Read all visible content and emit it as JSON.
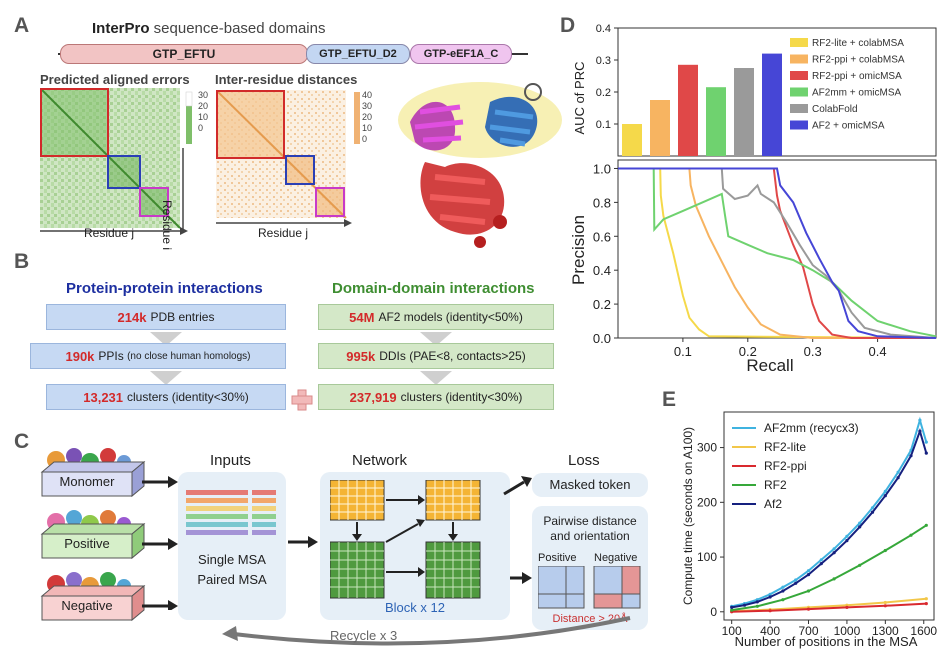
{
  "panels": {
    "a": "A",
    "b": "B",
    "c": "C",
    "d": "D",
    "e": "E"
  },
  "panel_a": {
    "title_bold": "InterPro",
    "title_rest": " sequence-based domains",
    "domains": [
      "GTP_EFTU",
      "GTP_EFTU_D2",
      "GTP-eEF1A_C"
    ],
    "pae_title": "Predicted aligned errors",
    "pae_scale": [
      "30",
      "20",
      "10",
      "0"
    ],
    "dist_title": "Inter-residue distances",
    "dist_scale": [
      "40",
      "30",
      "20",
      "10",
      "0"
    ],
    "residue_i": "Residue i",
    "residue_j": "Residue j"
  },
  "panel_b": {
    "ppi_title": "Protein-protein interactions",
    "ddi_title": "Domain-domain interactions",
    "ppi_rows": [
      {
        "hl": "214k",
        "text": "PDB entries",
        "small": ""
      },
      {
        "hl": "190k",
        "text": "PPIs",
        "small": "(no close human homologs)"
      },
      {
        "hl": "13,231",
        "text": "clusters (identity<30%)",
        "small": ""
      }
    ],
    "ddi_rows": [
      {
        "hl": "54M",
        "text": "AF2 models (identity<50%)"
      },
      {
        "hl": "995k",
        "text": "DDIs (PAE<8, contacts>25)"
      },
      {
        "hl": "237,919",
        "text": "clusters (identity<30%)"
      }
    ]
  },
  "panel_c": {
    "categories": [
      "Monomer",
      "Positive",
      "Negative"
    ],
    "inputs_title": "Inputs",
    "inputs_lines": [
      "Single MSA",
      "Paired MSA"
    ],
    "network_title": "Network",
    "block_label": "Block x 12",
    "loss_title": "Loss",
    "masked_token": "Masked token",
    "pairwise_lines": [
      "Pairwise distance",
      "and orientation"
    ],
    "positive": "Positive",
    "negative": "Negative",
    "distance_note": "Distance > 20Å",
    "recycle": "Recycle x 3"
  },
  "colors": {
    "rf2lite": "#f5d94a",
    "rf2ppi_colab": "#f7b461",
    "rf2ppi_omic": "#e04848",
    "af2mm_omic": "#6fd26f",
    "colabfold": "#9a9a9a",
    "af2_omic": "#4646d6",
    "e_af2mm": "#3fb3e0",
    "e_rf2lite": "#f2c74a",
    "e_rf2ppi": "#d9292e",
    "e_rf2": "#36a83a",
    "e_af2": "#15207f"
  },
  "chart_data": [
    {
      "type": "bar",
      "title": "",
      "ylabel": "AUC of PRC",
      "ylim": [
        0,
        0.4
      ],
      "yticks": [
        "0.1",
        "0.2",
        "0.3",
        "0.4"
      ],
      "categories": [
        "RF2-lite + colabMSA",
        "RF2-ppi + colabMSA",
        "RF2-ppi + omicMSA",
        "AF2mm + omicMSA",
        "ColabFold",
        "AF2 + omicMSA"
      ],
      "values": [
        0.1,
        0.175,
        0.285,
        0.215,
        0.275,
        0.32
      ]
    },
    {
      "type": "line",
      "xlabel": "Recall",
      "ylabel": "Precision",
      "xlim": [
        0,
        0.49
      ],
      "ylim": [
        0,
        1.05
      ],
      "xticks": [
        "0.1",
        "0.2",
        "0.3",
        "0.4"
      ],
      "yticks": [
        "0.0",
        "0.2",
        "0.4",
        "0.6",
        "0.8",
        "1.0"
      ],
      "series": [
        {
          "name": "RF2-lite + colabMSA",
          "points": [
            [
              0,
              1
            ],
            [
              0.065,
              1
            ],
            [
              0.066,
              0.84
            ],
            [
              0.07,
              0.72
            ],
            [
              0.085,
              0.5
            ],
            [
              0.1,
              0.25
            ],
            [
              0.11,
              0.12
            ],
            [
              0.125,
              0.05
            ],
            [
              0.14,
              0.01
            ],
            [
              0.49,
              0
            ]
          ]
        },
        {
          "name": "RF2-ppi + colabMSA",
          "points": [
            [
              0,
              1
            ],
            [
              0.11,
              1
            ],
            [
              0.112,
              0.9
            ],
            [
              0.12,
              0.78
            ],
            [
              0.14,
              0.6
            ],
            [
              0.16,
              0.45
            ],
            [
              0.18,
              0.3
            ],
            [
              0.2,
              0.18
            ],
            [
              0.22,
              0.08
            ],
            [
              0.25,
              0.02
            ],
            [
              0.3,
              0
            ],
            [
              0.49,
              0
            ]
          ]
        },
        {
          "name": "RF2-ppi + omicMSA",
          "points": [
            [
              0,
              1
            ],
            [
              0.24,
              1
            ],
            [
              0.245,
              0.84
            ],
            [
              0.25,
              0.75
            ],
            [
              0.27,
              0.55
            ],
            [
              0.285,
              0.42
            ],
            [
              0.3,
              0.2
            ],
            [
              0.31,
              0.1
            ],
            [
              0.33,
              0.02
            ],
            [
              0.36,
              0
            ],
            [
              0.49,
              0
            ]
          ]
        },
        {
          "name": "AF2mm + omicMSA",
          "points": [
            [
              0,
              1
            ],
            [
              0.055,
              1
            ],
            [
              0.056,
              0.64
            ],
            [
              0.07,
              0.7
            ],
            [
              0.1,
              0.75
            ],
            [
              0.13,
              0.8
            ],
            [
              0.16,
              0.85
            ],
            [
              0.165,
              0.72
            ],
            [
              0.17,
              0.6
            ],
            [
              0.2,
              0.55
            ],
            [
              0.23,
              0.5
            ],
            [
              0.27,
              0.46
            ],
            [
              0.3,
              0.4
            ],
            [
              0.33,
              0.33
            ],
            [
              0.36,
              0.22
            ],
            [
              0.4,
              0.1
            ],
            [
              0.45,
              0.04
            ],
            [
              0.49,
              0.01
            ]
          ]
        },
        {
          "name": "ColabFold",
          "points": [
            [
              0,
              1
            ],
            [
              0.16,
              1
            ],
            [
              0.162,
              0.88
            ],
            [
              0.18,
              0.82
            ],
            [
              0.2,
              0.84
            ],
            [
              0.215,
              0.9
            ],
            [
              0.22,
              0.85
            ],
            [
              0.24,
              0.8
            ],
            [
              0.26,
              0.68
            ],
            [
              0.28,
              0.55
            ],
            [
              0.3,
              0.43
            ],
            [
              0.32,
              0.37
            ],
            [
              0.34,
              0.28
            ],
            [
              0.36,
              0.15
            ],
            [
              0.38,
              0.06
            ],
            [
              0.42,
              0.02
            ],
            [
              0.49,
              0
            ]
          ]
        },
        {
          "name": "AF2 + omicMSA",
          "points": [
            [
              0,
              1
            ],
            [
              0.245,
              1
            ],
            [
              0.25,
              0.9
            ],
            [
              0.27,
              0.8
            ],
            [
              0.29,
              0.62
            ],
            [
              0.31,
              0.47
            ],
            [
              0.33,
              0.33
            ],
            [
              0.34,
              0.28
            ],
            [
              0.355,
              0.1
            ],
            [
              0.37,
              0.04
            ],
            [
              0.4,
              0.01
            ],
            [
              0.49,
              0
            ]
          ]
        }
      ]
    },
    {
      "type": "line",
      "xlabel": "Number of positions in the MSA",
      "ylabel": "Compute time (seconds on A100)",
      "xlim": [
        40,
        1680
      ],
      "ylim": [
        -15,
        365
      ],
      "xticks": [
        "100",
        "400",
        "700",
        "1000",
        "1300",
        "1600"
      ],
      "yticks": [
        "0",
        "100",
        "200",
        "300"
      ],
      "series": [
        {
          "name": "AF2mm (recycx3)",
          "points": [
            [
              100,
              10
            ],
            [
              200,
              15
            ],
            [
              300,
              22
            ],
            [
              400,
              32
            ],
            [
              500,
              45
            ],
            [
              600,
              58
            ],
            [
              700,
              75
            ],
            [
              800,
              95
            ],
            [
              900,
              115
            ],
            [
              1000,
              138
            ],
            [
              1100,
              162
            ],
            [
              1200,
              190
            ],
            [
              1300,
              220
            ],
            [
              1400,
              255
            ],
            [
              1500,
              295
            ],
            [
              1570,
              350
            ],
            [
              1620,
              310
            ]
          ]
        },
        {
          "name": "RF2-lite",
          "points": [
            [
              100,
              1
            ],
            [
              400,
              4
            ],
            [
              700,
              8
            ],
            [
              1000,
              12
            ],
            [
              1300,
              17
            ],
            [
              1620,
              24
            ]
          ]
        },
        {
          "name": "RF2-ppi",
          "points": [
            [
              100,
              0
            ],
            [
              400,
              2
            ],
            [
              700,
              5
            ],
            [
              1000,
              8
            ],
            [
              1300,
              11
            ],
            [
              1620,
              15
            ]
          ]
        },
        {
          "name": "RF2",
          "points": [
            [
              100,
              3
            ],
            [
              300,
              10
            ],
            [
              500,
              22
            ],
            [
              700,
              38
            ],
            [
              900,
              60
            ],
            [
              1100,
              85
            ],
            [
              1300,
              112
            ],
            [
              1500,
              140
            ],
            [
              1620,
              158
            ]
          ]
        },
        {
          "name": "Af2",
          "points": [
            [
              100,
              8
            ],
            [
              200,
              12
            ],
            [
              300,
              18
            ],
            [
              400,
              27
            ],
            [
              500,
              38
            ],
            [
              600,
              52
            ],
            [
              700,
              68
            ],
            [
              800,
              88
            ],
            [
              900,
              108
            ],
            [
              1000,
              130
            ],
            [
              1100,
              155
            ],
            [
              1200,
              182
            ],
            [
              1300,
              212
            ],
            [
              1400,
              245
            ],
            [
              1500,
              285
            ],
            [
              1570,
              330
            ],
            [
              1620,
              290
            ]
          ]
        }
      ]
    }
  ]
}
